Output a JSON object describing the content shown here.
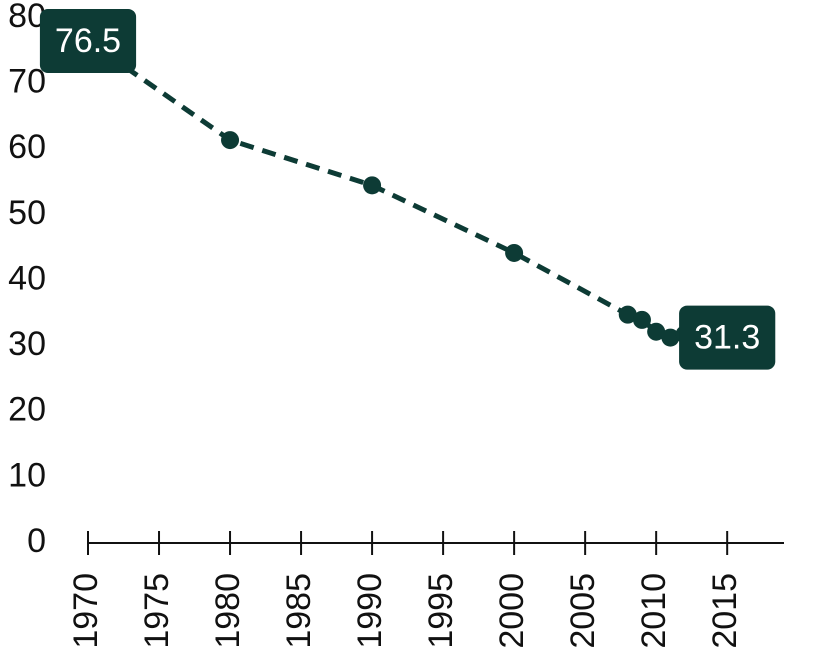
{
  "chart_data": {
    "type": "line",
    "x": [
      1970,
      1980,
      1990,
      2000,
      2008,
      2009,
      2010,
      2011,
      2012,
      2013,
      2014,
      2015
    ],
    "values": [
      76.5,
      61.4,
      54.5,
      44.2,
      34.8,
      34.0,
      32.2,
      31.3,
      31.8,
      31.3,
      31.9,
      31.3
    ],
    "value_labels": [
      "76.5",
      null,
      null,
      null,
      null,
      null,
      null,
      null,
      null,
      null,
      null,
      "31.3"
    ],
    "color": "#0d3b35",
    "xlim": [
      1970,
      2019
    ],
    "xticks": [
      1970,
      1975,
      1980,
      1985,
      1990,
      1995,
      2000,
      2005,
      2010,
      2015
    ],
    "ylim": [
      0,
      80
    ],
    "yticks": [
      0,
      10,
      20,
      30,
      40,
      50,
      60,
      70,
      80
    ],
    "grid": false
  }
}
